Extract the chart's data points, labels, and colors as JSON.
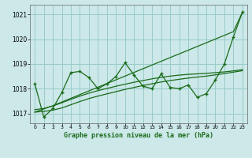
{
  "title": "Graphe pression niveau de la mer (hPa)",
  "background_color": "#cce8e8",
  "grid_color": "#99cccc",
  "line_color": "#1a6b1a",
  "ylim": [
    1016.6,
    1021.4
  ],
  "yticks": [
    1017,
    1018,
    1019,
    1020,
    1021
  ],
  "x_labels": [
    "0",
    "1",
    "2",
    "3",
    "4",
    "5",
    "6",
    "7",
    "8",
    "9",
    "10",
    "11",
    "12",
    "13",
    "14",
    "15",
    "16",
    "17",
    "18",
    "19",
    "20",
    "21",
    "22",
    "23"
  ],
  "series_main": [
    1018.2,
    1016.85,
    1017.2,
    1017.85,
    1018.65,
    1018.7,
    1018.45,
    1018.0,
    1018.2,
    1018.5,
    1019.05,
    1018.55,
    1018.1,
    1018.0,
    1018.6,
    1018.05,
    1018.0,
    1018.15,
    1017.65,
    1017.8,
    1018.35,
    1019.0,
    1020.1,
    1021.1
  ],
  "series_smooth1": [
    1017.05,
    1017.08,
    1017.13,
    1017.22,
    1017.35,
    1017.48,
    1017.6,
    1017.7,
    1017.79,
    1017.88,
    1017.97,
    1018.05,
    1018.13,
    1018.2,
    1018.27,
    1018.33,
    1018.38,
    1018.43,
    1018.47,
    1018.51,
    1018.56,
    1018.61,
    1018.67,
    1018.73
  ],
  "series_smooth2": [
    1017.15,
    1017.2,
    1017.3,
    1017.43,
    1017.57,
    1017.7,
    1017.82,
    1017.92,
    1018.01,
    1018.1,
    1018.18,
    1018.26,
    1018.33,
    1018.4,
    1018.46,
    1018.51,
    1018.55,
    1018.58,
    1018.6,
    1018.62,
    1018.65,
    1018.68,
    1018.72,
    1018.77
  ],
  "series_trend": [
    1017.05,
    1017.18,
    1017.31,
    1017.46,
    1017.61,
    1017.76,
    1017.91,
    1018.06,
    1018.21,
    1018.36,
    1018.51,
    1018.66,
    1018.81,
    1018.96,
    1019.11,
    1019.26,
    1019.41,
    1019.56,
    1019.71,
    1019.86,
    1020.01,
    1020.16,
    1020.31,
    1021.1
  ]
}
